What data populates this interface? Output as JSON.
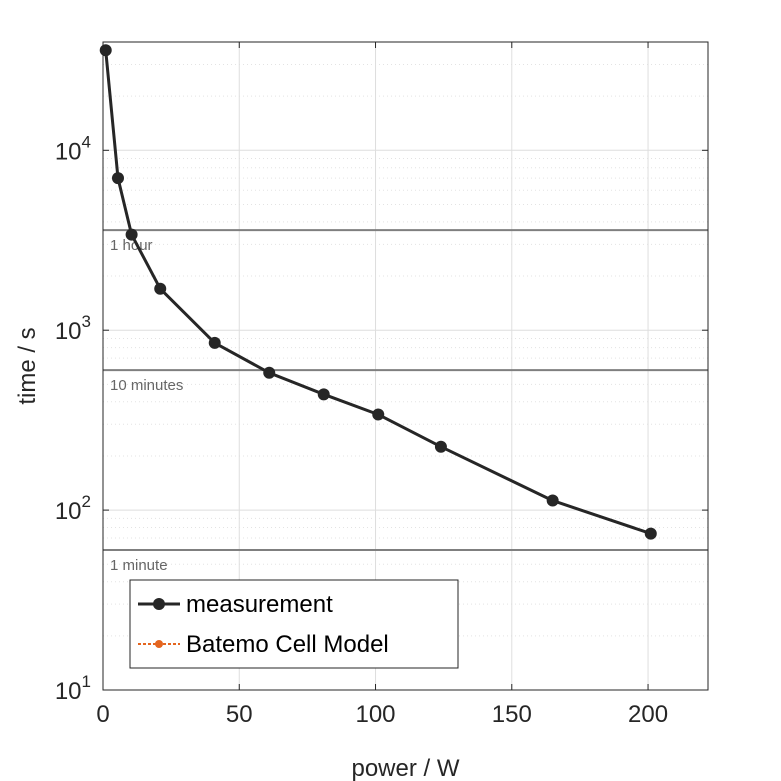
{
  "chart_data": {
    "type": "line",
    "xlabel": "power / W",
    "ylabel": "time / s",
    "xlim": [
      0,
      222
    ],
    "ylim": [
      10,
      40000
    ],
    "yscale": "log",
    "grid": true,
    "x_ticks": [
      0,
      50,
      100,
      150,
      200
    ],
    "y_ticks": [
      {
        "value": 10,
        "base": "10",
        "exp": "1"
      },
      {
        "value": 100,
        "base": "10",
        "exp": "2"
      },
      {
        "value": 1000,
        "base": "10",
        "exp": "3"
      },
      {
        "value": 10000,
        "base": "10",
        "exp": "4"
      }
    ],
    "reference_lines": [
      {
        "y": 3600,
        "label": "1 hour"
      },
      {
        "y": 600,
        "label": "10 minutes"
      },
      {
        "y": 60,
        "label": "1 minute"
      }
    ],
    "series": [
      {
        "name": "measurement",
        "color": "#262626",
        "x": [
          1,
          5.5,
          10.5,
          21,
          41,
          61,
          81,
          101,
          124,
          165,
          201
        ],
        "y": [
          36000,
          7000,
          3400,
          1700,
          850,
          580,
          440,
          340,
          225,
          113,
          74
        ]
      },
      {
        "name": "Batemo Cell Model",
        "color": "#e4651f",
        "x": [],
        "y": []
      }
    ],
    "legend_position": "bottom-left"
  }
}
